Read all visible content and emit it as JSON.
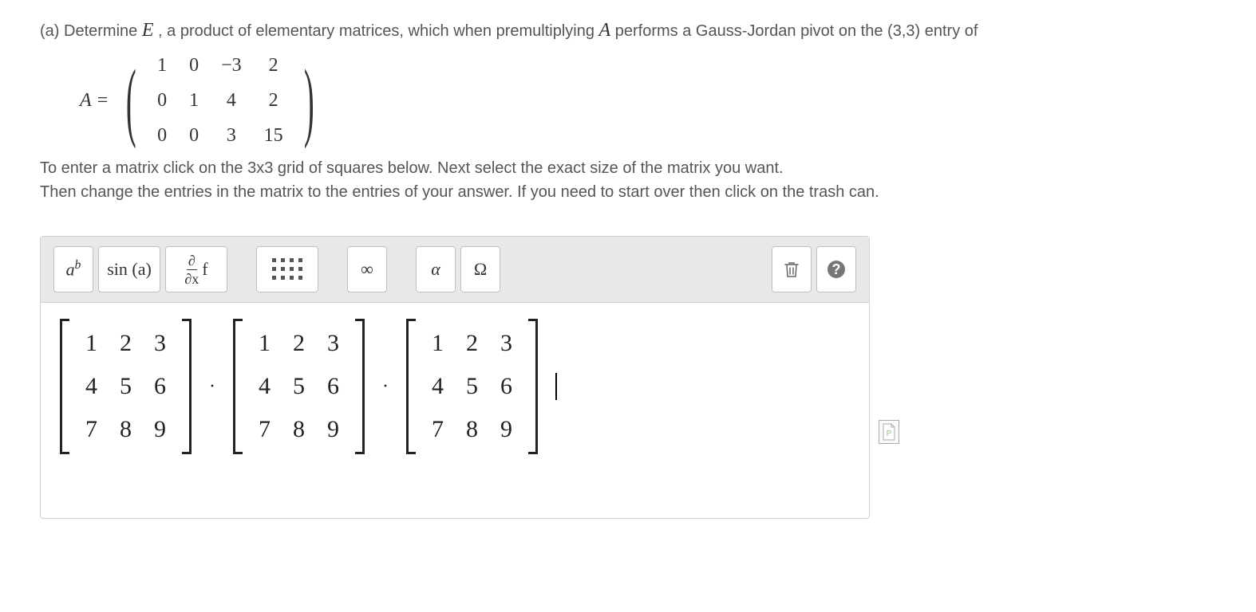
{
  "problem": {
    "part_label": "(a) Determine ",
    "var_E": "E",
    "text_mid1": ", a product of elementary matrices, which when premultiplying ",
    "var_A": "A",
    "text_mid2": " performs a Gauss-Jordan pivot on the (3,3) entry of",
    "A_eq": "A =",
    "matrix_A": {
      "rows": [
        [
          "1",
          "0",
          "−3",
          "2"
        ],
        [
          "0",
          "1",
          "4",
          "2"
        ],
        [
          "0",
          "0",
          "3",
          "15"
        ]
      ]
    },
    "instr1": "To enter a matrix click on the 3x3 grid of squares below. Next select the exact size of the matrix you want.",
    "instr2": "Then change the entries in the matrix to the entries of your answer. If you need to start over then click on the trash can."
  },
  "toolbar": {
    "exponent_base": "a",
    "exponent_sup": "b",
    "trig": "sin (a)",
    "partial_num": "∂",
    "partial_den": "∂x",
    "partial_f": "f",
    "infinity": "∞",
    "alpha": "α",
    "omega": "Ω"
  },
  "editor": {
    "op_dot": "·",
    "matrices": [
      {
        "rows": [
          [
            "1",
            "2",
            "3"
          ],
          [
            "4",
            "5",
            "6"
          ],
          [
            "7",
            "8",
            "9"
          ]
        ]
      },
      {
        "rows": [
          [
            "1",
            "2",
            "3"
          ],
          [
            "4",
            "5",
            "6"
          ],
          [
            "7",
            "8",
            "9"
          ]
        ]
      },
      {
        "rows": [
          [
            "1",
            "2",
            "3"
          ],
          [
            "4",
            "5",
            "6"
          ],
          [
            "7",
            "8",
            "9"
          ]
        ]
      }
    ]
  },
  "badge": {
    "label": "P"
  },
  "colors": {
    "text": "#555555",
    "toolbar_bg": "#e8e8e8",
    "border": "#d0d0d0",
    "btn_border": "#c0c0c0"
  }
}
